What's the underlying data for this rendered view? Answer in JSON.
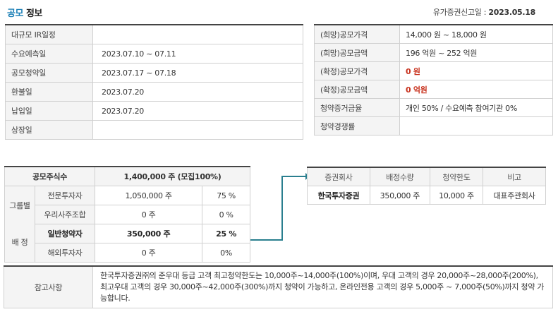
{
  "header": {
    "title_part1": "공모",
    "title_part2": "정보",
    "reg_date_label": "유가증권신고일 :",
    "reg_date_value": "2023.05.18"
  },
  "schedule": [
    {
      "label": "대규모 IR일정",
      "value": ""
    },
    {
      "label": "수요예측일",
      "value": "2023.07.10 ~ 07.11"
    },
    {
      "label": "공모청약일",
      "value": "2023.07.17 ~ 07.18"
    },
    {
      "label": "환불일",
      "value": "2023.07.20"
    },
    {
      "label": "납입일",
      "value": "2023.07.20"
    },
    {
      "label": "상장일",
      "value": ""
    }
  ],
  "pricing": [
    {
      "label": "(희망)공모가격",
      "value": "14,000 원 ~ 18,000 원"
    },
    {
      "label": "(희망)공모금액",
      "value": "196 억원  ~ 252 억원"
    },
    {
      "label": "(확정)공모가격",
      "value": "0 원"
    },
    {
      "label": "(확정)공모금액",
      "value": "0 억원"
    },
    {
      "label": "청약증거금율",
      "value": "개인 50% / 수요예측 참여기관 0%"
    },
    {
      "label": "청약경쟁률",
      "value": ""
    }
  ],
  "allocation": {
    "total_label": "공모주식수",
    "total_value": "1,400,000 주 (모집100%)",
    "group_label_1": "그룹별",
    "group_label_2": "배 정",
    "rows": [
      {
        "name": "전문투자자",
        "shares": "1,050,000 주",
        "pct": "75 %"
      },
      {
        "name": "우리사주조합",
        "shares": "0 주",
        "pct": "0 %"
      },
      {
        "name": "일반청약자",
        "shares": "350,000 주",
        "pct": "25 %"
      },
      {
        "name": "해외투자자",
        "shares": "0 주",
        "pct": "0%"
      }
    ]
  },
  "broker": {
    "headers": [
      "증권회사",
      "배정수량",
      "청약한도",
      "비고"
    ],
    "row": [
      "한국투자증권",
      "350,000 주",
      "10,000 주",
      "대표주관회사"
    ]
  },
  "note": {
    "label": "참고사항",
    "text": "한국투자증권㈜의 준우대 등급 고객 최고청약한도는 10,000주~14,000주(100%)이며, 우대 고객의 경우 20,000주~28,000주(200%), 최고우대 고객의 경우 30,000주~42,000주(300%)까지 청약이 가능하고, 온라인전용 고객의 경우 5,000주 ~ 7,000주(50%)까지 청약 가능합니다."
  },
  "colors": {
    "accent_blue": "#1a7fb6",
    "highlight_red": "#c8321e",
    "connector_teal": "#2a7f8f"
  }
}
